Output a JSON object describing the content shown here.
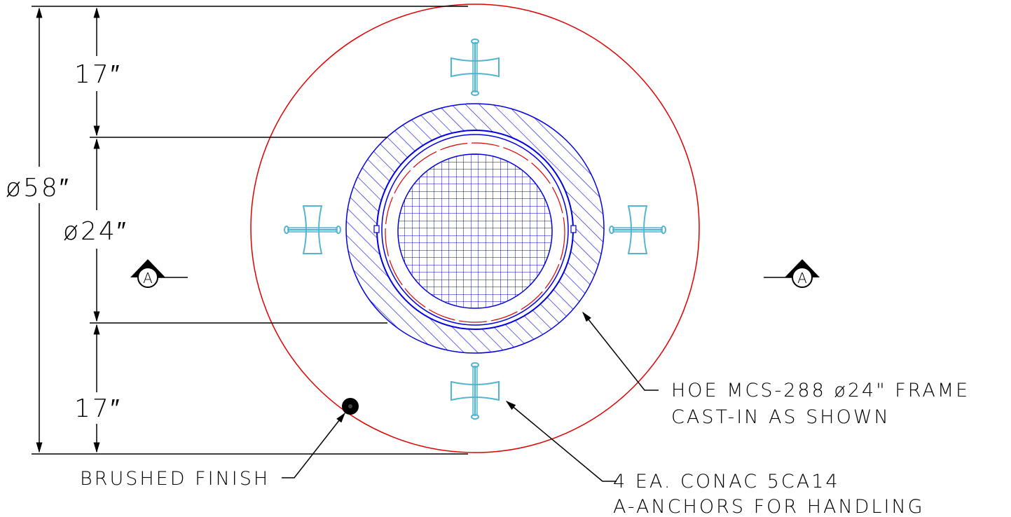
{
  "colors": {
    "outline": "#e00000",
    "frame": "#0000e0",
    "anchor": "#55b4d0",
    "dimension": "#000000"
  },
  "dimensions": {
    "overall_diameter": "ø58″",
    "opening_diameter": "ø24″",
    "top_offset": "17″",
    "bottom_offset": "17″"
  },
  "section_markers": {
    "left": "A",
    "right": "A"
  },
  "callouts": {
    "frame": {
      "line1": "HOE MCS-288 ø24\" FRAME",
      "line2": "CAST-IN AS SHOWN"
    },
    "anchors": {
      "line1": "4 EA. CONAC 5CA14",
      "line2": "A-ANCHORS FOR HANDLING"
    },
    "finish": {
      "line1": "BRUSHED FINISH"
    }
  },
  "icons": {
    "anchor": "a-anchor-icon",
    "section_marker": "section-cut-marker-icon",
    "finish_symbol": "brushed-finish-dot-icon"
  }
}
